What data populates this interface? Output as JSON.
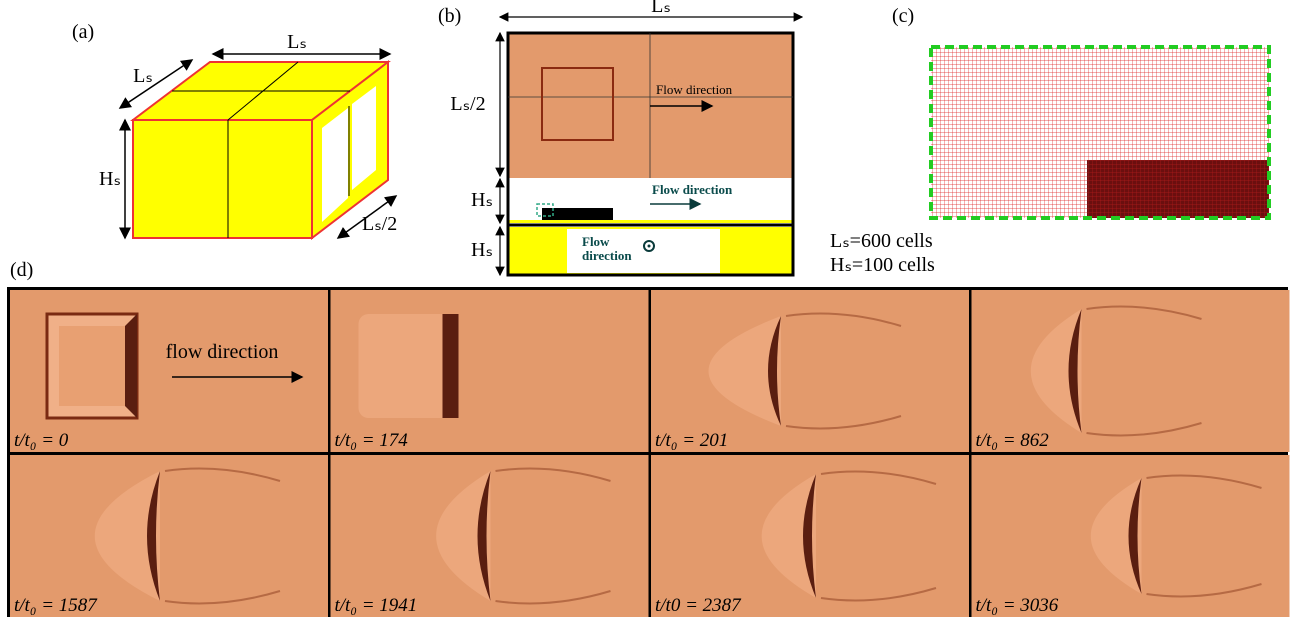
{
  "panel_a": {
    "label": "(a)",
    "top_dim": "Lₛ",
    "depth_dim": "Lₛ",
    "height_dim": "Hₛ",
    "half_dim": "Lₛ/2"
  },
  "panel_b": {
    "label": "(b)",
    "width_dim": "Lₛ",
    "top_height_dim": "Lₛ/2",
    "mid_height_dim": "Hₛ",
    "bottom_height_dim": "Hₛ",
    "top_flow": "Flow direction",
    "mid_flow": "Flow direction",
    "bottom_flow": [
      "Flow",
      "direction"
    ]
  },
  "panel_c": {
    "label": "(c)",
    "notes": [
      "Lₛ=600 cells",
      "Hₛ=100 cells"
    ]
  },
  "panel_d": {
    "label": "(d)",
    "flow": "flow direction",
    "frames": [
      "t/t₀ = 0",
      "t/t₀ = 174",
      "t/t₀ = 201",
      "t/t₀ = 862",
      "t/t₀ = 1587",
      "t/t₀ = 1941",
      "t/t0 = 2387",
      "t/t₀ = 3036"
    ]
  }
}
